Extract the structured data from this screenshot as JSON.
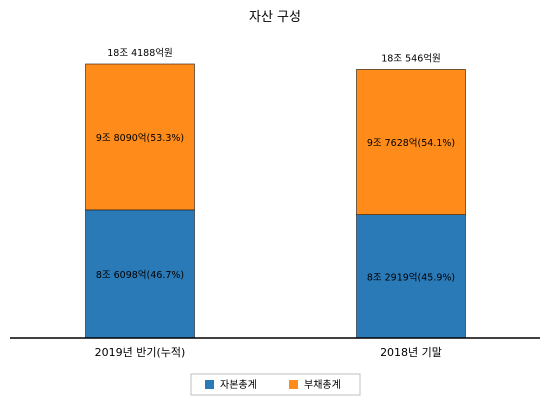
{
  "chart_data": {
    "type": "bar",
    "stacked": true,
    "title": "자산 구성",
    "categories": [
      "2019년 반기(누적)",
      "2018년 기말"
    ],
    "series": [
      {
        "name": "자본총계",
        "color": "#2a7ab8",
        "values": [
          8.6098,
          8.2919
        ],
        "labels": [
          "8조 6098억(46.7%)",
          "8조 2919억(45.9%)"
        ]
      },
      {
        "name": "부채총계",
        "color": "#ff8c1a",
        "values": [
          9.809,
          9.7628
        ],
        "labels": [
          "9조 8090억(53.3%)",
          "9조 7628억(54.1%)"
        ]
      }
    ],
    "totals": [
      "18조 4188억원",
      "18조 546억원"
    ],
    "total_values": [
      18.4188,
      18.0546
    ],
    "ylim": [
      0,
      18.4188
    ],
    "unit": "조원",
    "grid": false,
    "legend": {
      "placement": "bottom-center"
    },
    "colors": {
      "axis": "#000000",
      "bar_edge": "#1a1a1a"
    }
  }
}
